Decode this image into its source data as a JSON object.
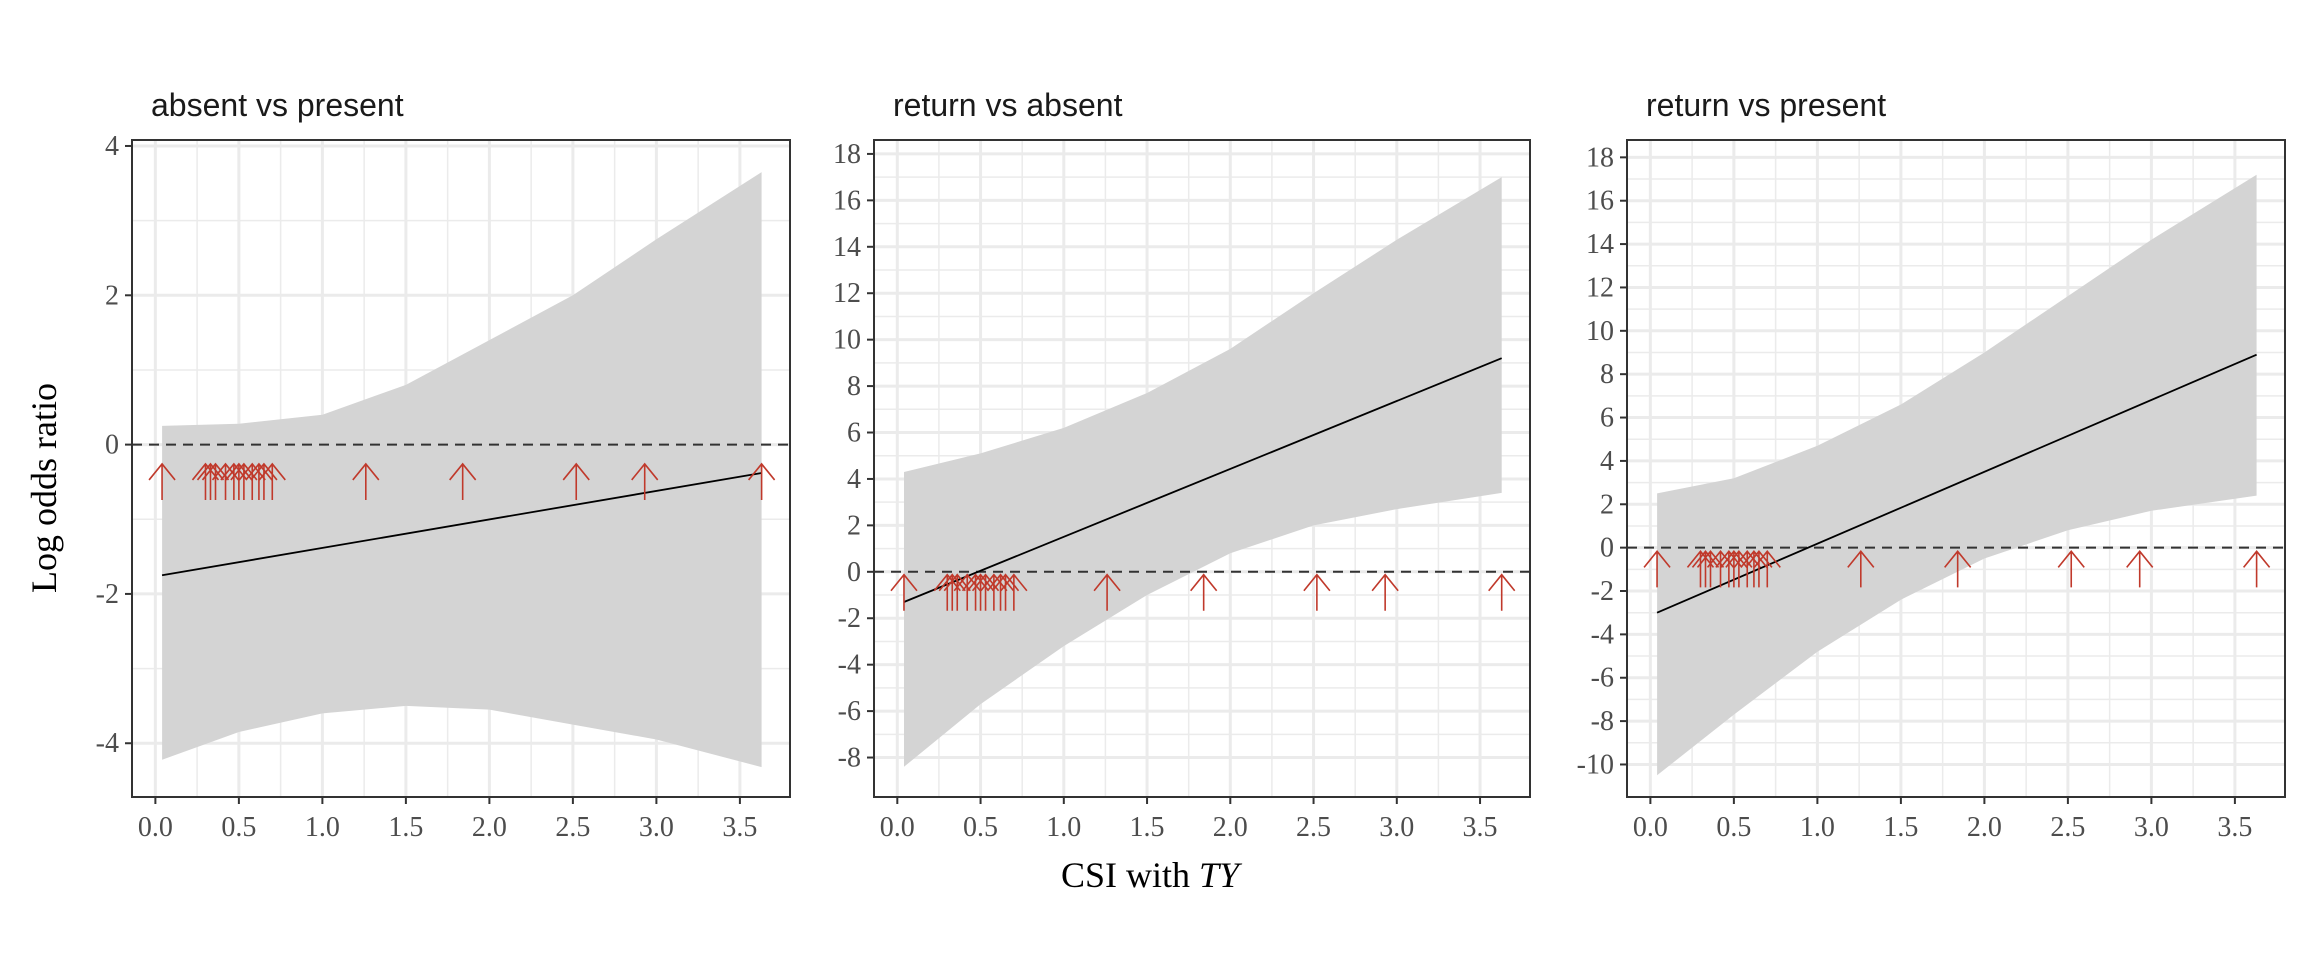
{
  "figure": {
    "ylabel": "Log odds ratio",
    "xlabel_prefix": "CSI with ",
    "xlabel_italic": "TY"
  },
  "colors": {
    "ribbon": "#d4d4d4",
    "fit_line": "#000000",
    "reference_line": "#333333",
    "rug_arrows": "#c0392b",
    "grid": "#ebebeb",
    "panel_border": "#333333"
  },
  "chart_data": [
    {
      "type": "line",
      "title": "absent vs present",
      "x_ticks": [
        0.0,
        0.5,
        1.0,
        1.5,
        2.0,
        2.5,
        3.0,
        3.5
      ],
      "x_tick_labels": [
        "0.0",
        "0.5",
        "1.0",
        "1.5",
        "2.0",
        "2.5",
        "3.0",
        "3.5"
      ],
      "y_ticks": [
        -4,
        -2,
        0,
        2,
        4
      ],
      "y_tick_labels": [
        "-4",
        "-2",
        "0",
        "2",
        "4"
      ],
      "xlim": [
        -0.14,
        3.8
      ],
      "ylim": [
        -4.72,
        4.08
      ],
      "grid": true,
      "reference_line_y": 0,
      "fit": {
        "x": [
          0.04,
          3.63
        ],
        "y": [
          -1.75,
          -0.38
        ]
      },
      "ribbon": {
        "x": [
          0.04,
          0.5,
          1.0,
          1.5,
          2.0,
          2.5,
          3.0,
          3.63
        ],
        "lower": [
          -4.22,
          -3.85,
          -3.6,
          -3.5,
          -3.55,
          -3.75,
          -3.95,
          -4.32
        ],
        "upper": [
          0.25,
          0.28,
          0.4,
          0.8,
          1.4,
          2.0,
          2.75,
          3.65
        ]
      },
      "rug_x": [
        0.04,
        0.3,
        0.33,
        0.36,
        0.42,
        0.47,
        0.5,
        0.53,
        0.58,
        0.62,
        0.65,
        0.7,
        1.26,
        1.84,
        2.52,
        2.93,
        3.63
      ],
      "rug_y": -0.5
    },
    {
      "type": "line",
      "title": "return vs absent",
      "x_ticks": [
        0.0,
        0.5,
        1.0,
        1.5,
        2.0,
        2.5,
        3.0,
        3.5
      ],
      "x_tick_labels": [
        "0.0",
        "0.5",
        "1.0",
        "1.5",
        "2.0",
        "2.5",
        "3.0",
        "3.5"
      ],
      "y_ticks": [
        -8,
        -6,
        -4,
        -2,
        0,
        2,
        4,
        6,
        8,
        10,
        12,
        14,
        16,
        18
      ],
      "y_tick_labels": [
        "-8",
        "-6",
        "-4",
        "-2",
        "0",
        "2",
        "4",
        "6",
        "8",
        "10",
        "12",
        "14",
        "16",
        "18"
      ],
      "xlim": [
        -0.14,
        3.8
      ],
      "ylim": [
        -9.7,
        18.6
      ],
      "grid": true,
      "reference_line_y": 0,
      "fit": {
        "x": [
          0.04,
          3.63
        ],
        "y": [
          -1.3,
          9.2
        ]
      },
      "ribbon": {
        "x": [
          0.04,
          0.5,
          1.0,
          1.5,
          2.0,
          2.5,
          3.0,
          3.63
        ],
        "lower": [
          -8.4,
          -5.7,
          -3.2,
          -1.0,
          0.8,
          2.0,
          2.7,
          3.4
        ],
        "upper": [
          4.3,
          5.1,
          6.2,
          7.7,
          9.6,
          12.0,
          14.3,
          17.0
        ]
      },
      "rug_x": [
        0.04,
        0.3,
        0.33,
        0.36,
        0.42,
        0.47,
        0.5,
        0.53,
        0.58,
        0.62,
        0.65,
        0.7,
        1.26,
        1.84,
        2.52,
        2.93,
        3.63
      ],
      "rug_y": -0.9
    },
    {
      "type": "line",
      "title": "return vs present",
      "x_ticks": [
        0.0,
        0.5,
        1.0,
        1.5,
        2.0,
        2.5,
        3.0,
        3.5
      ],
      "x_tick_labels": [
        "0.0",
        "0.5",
        "1.0",
        "1.5",
        "2.0",
        "2.5",
        "3.0",
        "3.5"
      ],
      "y_ticks": [
        -10,
        -8,
        -6,
        -4,
        -2,
        0,
        2,
        4,
        6,
        8,
        10,
        12,
        14,
        16,
        18
      ],
      "y_tick_labels": [
        "-10",
        "-8",
        "-6",
        "-4",
        "-2",
        "0",
        "2",
        "4",
        "6",
        "8",
        "10",
        "12",
        "14",
        "16",
        "18"
      ],
      "xlim": [
        -0.14,
        3.8
      ],
      "ylim": [
        -11.5,
        18.8
      ],
      "grid": true,
      "reference_line_y": 0,
      "fit": {
        "x": [
          0.04,
          3.63
        ],
        "y": [
          -3.0,
          8.9
        ]
      },
      "ribbon": {
        "x": [
          0.04,
          0.5,
          1.0,
          1.5,
          2.0,
          2.5,
          3.0,
          3.63
        ],
        "lower": [
          -10.5,
          -7.7,
          -4.8,
          -2.4,
          -0.5,
          0.8,
          1.7,
          2.4
        ],
        "upper": [
          2.5,
          3.2,
          4.7,
          6.6,
          9.0,
          11.6,
          14.2,
          17.2
        ]
      },
      "rug_x": [
        0.04,
        0.3,
        0.33,
        0.36,
        0.42,
        0.47,
        0.5,
        0.53,
        0.58,
        0.62,
        0.65,
        0.7,
        1.26,
        1.84,
        2.52,
        2.93,
        3.63
      ],
      "rug_y": -1.0
    }
  ]
}
